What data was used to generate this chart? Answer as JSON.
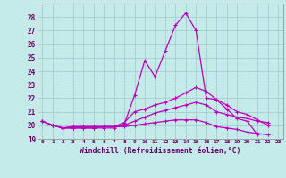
{
  "xlabel": "Windchill (Refroidissement éolien,°C)",
  "xlim": [
    -0.5,
    23.5
  ],
  "ylim": [
    19,
    29
  ],
  "yticks": [
    19,
    20,
    21,
    22,
    23,
    24,
    25,
    26,
    27,
    28
  ],
  "xticks": [
    0,
    1,
    2,
    3,
    4,
    5,
    6,
    7,
    8,
    9,
    10,
    11,
    12,
    13,
    14,
    15,
    16,
    17,
    18,
    19,
    20,
    21,
    22,
    23
  ],
  "background_color": "#c5eaea",
  "grid_color": "#a0c8c8",
  "line_color": "#bb00bb",
  "series": [
    {
      "x": [
        0,
        1,
        2,
        3,
        4,
        5,
        6,
        7,
        8,
        9,
        10,
        11,
        12,
        13,
        14,
        15,
        16,
        17,
        18,
        19,
        20,
        21,
        22,
        23
      ],
      "y": [
        20.3,
        20.0,
        19.8,
        19.8,
        19.8,
        19.8,
        19.8,
        19.8,
        20.1,
        22.2,
        24.8,
        23.6,
        25.5,
        27.4,
        28.3,
        27.0,
        22.0,
        21.9,
        21.2,
        20.5,
        20.3,
        19.3,
        null,
        null
      ]
    },
    {
      "x": [
        0,
        1,
        2,
        3,
        4,
        5,
        6,
        7,
        8,
        9,
        10,
        11,
        12,
        13,
        14,
        15,
        16,
        17,
        18,
        19,
        20,
        21,
        22,
        23
      ],
      "y": [
        20.3,
        20.0,
        19.8,
        19.8,
        19.8,
        19.8,
        19.9,
        19.9,
        20.2,
        21.0,
        21.2,
        21.5,
        21.7,
        22.0,
        22.4,
        22.8,
        22.5,
        21.9,
        21.5,
        21.0,
        20.8,
        20.4,
        20.0,
        null
      ]
    },
    {
      "x": [
        0,
        1,
        2,
        3,
        4,
        5,
        6,
        7,
        8,
        9,
        10,
        11,
        12,
        13,
        14,
        15,
        16,
        17,
        18,
        19,
        20,
        21,
        22,
        23
      ],
      "y": [
        20.3,
        20.0,
        19.8,
        19.9,
        19.9,
        19.9,
        19.9,
        19.9,
        20.0,
        20.3,
        20.6,
        20.9,
        21.1,
        21.3,
        21.5,
        21.7,
        21.5,
        21.0,
        20.8,
        20.6,
        20.5,
        20.3,
        20.2,
        null
      ]
    },
    {
      "x": [
        0,
        1,
        2,
        3,
        4,
        5,
        6,
        7,
        8,
        9,
        10,
        11,
        12,
        13,
        14,
        15,
        16,
        17,
        18,
        19,
        20,
        21,
        22,
        23
      ],
      "y": [
        20.3,
        20.0,
        19.8,
        19.9,
        19.9,
        19.9,
        19.9,
        19.9,
        19.9,
        20.0,
        20.1,
        20.2,
        20.3,
        20.4,
        20.4,
        20.4,
        20.2,
        19.9,
        19.8,
        19.7,
        19.5,
        19.4,
        19.3,
        null
      ]
    }
  ]
}
